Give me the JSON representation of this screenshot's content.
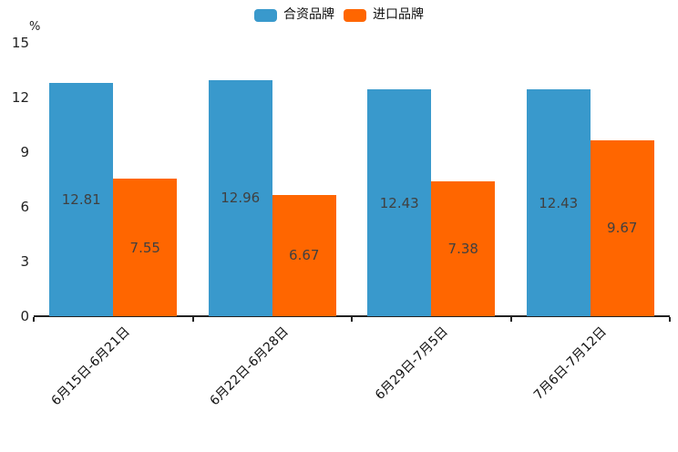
{
  "chart_data": {
    "type": "bar",
    "title": "",
    "xlabel": "",
    "ylabel": "%",
    "unit_label": "%",
    "categories": [
      "6月15日-6月21日",
      "6月22日-6月28日",
      "6月29日-7月5日",
      "7月6日-7月12日"
    ],
    "series": [
      {
        "name": "合资品牌",
        "color": "#3999cc",
        "values": [
          12.81,
          12.96,
          12.43,
          12.43
        ]
      },
      {
        "name": "进口品牌",
        "color": "#ff6600",
        "values": [
          7.55,
          6.67,
          7.38,
          9.67
        ]
      }
    ],
    "ylim": [
      0,
      15
    ],
    "yticks": [
      0,
      3,
      6,
      9,
      12,
      15
    ],
    "grid": false,
    "legend_position": "top",
    "data_labels": true,
    "axis_color": "#222222",
    "value_label_color": "#404040"
  }
}
